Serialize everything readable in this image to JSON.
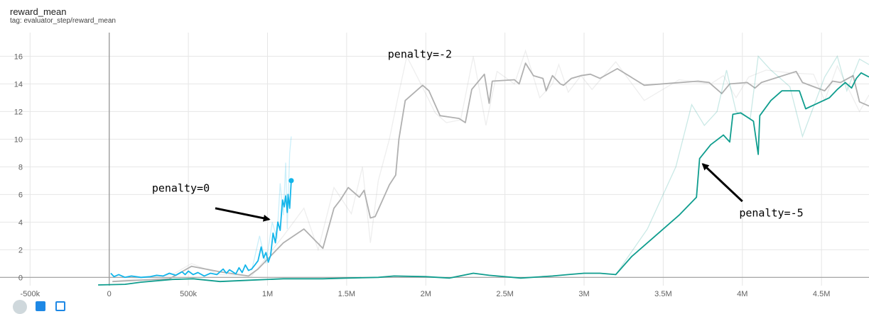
{
  "header": {
    "title": "reward_mean",
    "tag": "tag: evaluator_step/reward_mean"
  },
  "colors": {
    "penalty0": "#12b5ea",
    "penalty2": "#b0b0b0",
    "penalty5": "#0f9d8e",
    "grid": "#e6e6e6",
    "axis": "#9e9e9e"
  },
  "chart_data": {
    "type": "line",
    "title": "reward_mean",
    "subtitle": "tag: evaluator_step/reward_mean",
    "xlabel": "",
    "ylabel": "",
    "xlim": [
      -690000,
      4800000
    ],
    "ylim": [
      -0.6,
      17.2
    ],
    "grid": true,
    "x_ticks": [
      {
        "value": -500000,
        "label": "-500k"
      },
      {
        "value": 0,
        "label": "0"
      },
      {
        "value": 500000,
        "label": "500k"
      },
      {
        "value": 1000000,
        "label": "1M"
      },
      {
        "value": 1500000,
        "label": "1.5M"
      },
      {
        "value": 2000000,
        "label": "2M"
      },
      {
        "value": 2500000,
        "label": "2.5M"
      },
      {
        "value": 3000000,
        "label": "3M"
      },
      {
        "value": 3500000,
        "label": "3.5M"
      },
      {
        "value": 4000000,
        "label": "4M"
      },
      {
        "value": 4500000,
        "label": "4.5M"
      }
    ],
    "y_ticks": [
      {
        "value": 0,
        "label": "0"
      },
      {
        "value": 2,
        "label": "2"
      },
      {
        "value": 4,
        "label": "4"
      },
      {
        "value": 6,
        "label": "6"
      },
      {
        "value": 8,
        "label": "8"
      },
      {
        "value": 10,
        "label": "10"
      },
      {
        "value": 12,
        "label": "12"
      },
      {
        "value": 14,
        "label": "14"
      },
      {
        "value": 16,
        "label": "16"
      }
    ],
    "series": [
      {
        "key": "p2",
        "color": "#b0b0b0",
        "smoothed": [
          [
            20000,
            -0.3
          ],
          [
            200000,
            -0.2
          ],
          [
            380000,
            -0.1
          ],
          [
            520000,
            0.8
          ],
          [
            700000,
            0.4
          ],
          [
            880000,
            0.1
          ],
          [
            940000,
            0.6
          ],
          [
            1100000,
            2.5
          ],
          [
            1230000,
            3.5
          ],
          [
            1350000,
            2.1
          ],
          [
            1420000,
            5.0
          ],
          [
            1460000,
            5.6
          ],
          [
            1510000,
            6.5
          ],
          [
            1580000,
            5.8
          ],
          [
            1610000,
            6.3
          ],
          [
            1650000,
            4.3
          ],
          [
            1680000,
            4.4
          ],
          [
            1770000,
            6.7
          ],
          [
            1810000,
            7.4
          ],
          [
            1830000,
            10.0
          ],
          [
            1870000,
            12.8
          ],
          [
            1980000,
            13.9
          ],
          [
            2020000,
            13.5
          ],
          [
            2090000,
            11.7
          ],
          [
            2210000,
            11.5
          ],
          [
            2250000,
            11.2
          ],
          [
            2290000,
            13.6
          ],
          [
            2370000,
            14.7
          ],
          [
            2400000,
            12.6
          ],
          [
            2420000,
            14.2
          ],
          [
            2560000,
            14.3
          ],
          [
            2590000,
            14.0
          ],
          [
            2630000,
            15.5
          ],
          [
            2680000,
            14.6
          ],
          [
            2740000,
            14.4
          ],
          [
            2760000,
            13.5
          ],
          [
            2800000,
            14.6
          ],
          [
            2850000,
            14.0
          ],
          [
            2870000,
            13.9
          ],
          [
            2920000,
            14.4
          ],
          [
            2980000,
            14.6
          ],
          [
            3040000,
            14.7
          ],
          [
            3100000,
            14.4
          ],
          [
            3210000,
            15.1
          ],
          [
            3380000,
            13.9
          ],
          [
            3720000,
            14.2
          ],
          [
            3790000,
            14.1
          ],
          [
            3820000,
            13.8
          ],
          [
            3870000,
            13.3
          ],
          [
            3920000,
            14.0
          ],
          [
            4030000,
            14.1
          ],
          [
            4080000,
            13.7
          ],
          [
            4120000,
            14.1
          ],
          [
            4340000,
            14.9
          ],
          [
            4380000,
            14.1
          ],
          [
            4520000,
            13.5
          ],
          [
            4570000,
            14.2
          ],
          [
            4620000,
            14.1
          ],
          [
            4700000,
            14.6
          ],
          [
            4740000,
            12.7
          ],
          [
            4800000,
            12.4
          ]
        ],
        "raw": [
          [
            20000,
            -0.3
          ],
          [
            400000,
            0.2
          ],
          [
            520000,
            1.0
          ],
          [
            700000,
            0.2
          ],
          [
            900000,
            0.1
          ],
          [
            1100000,
            3.0
          ],
          [
            1230000,
            5.0
          ],
          [
            1320000,
            2.0
          ],
          [
            1420000,
            6.5
          ],
          [
            1530000,
            4.6
          ],
          [
            1600000,
            8.0
          ],
          [
            1650000,
            2.5
          ],
          [
            1700000,
            7.0
          ],
          [
            1770000,
            10.0
          ],
          [
            1820000,
            12.8
          ],
          [
            1880000,
            16.0
          ],
          [
            1960000,
            14.2
          ],
          [
            2060000,
            11.9
          ],
          [
            2130000,
            11.2
          ],
          [
            2220000,
            11.4
          ],
          [
            2300000,
            16.0
          ],
          [
            2380000,
            11.0
          ],
          [
            2450000,
            14.9
          ],
          [
            2560000,
            14.0
          ],
          [
            2630000,
            16.4
          ],
          [
            2720000,
            13.0
          ],
          [
            2800000,
            14.0
          ],
          [
            2840000,
            15.4
          ],
          [
            2900000,
            13.4
          ],
          [
            2980000,
            14.6
          ],
          [
            3050000,
            13.6
          ],
          [
            3200000,
            15.6
          ],
          [
            3380000,
            12.8
          ],
          [
            3600000,
            14.3
          ],
          [
            3800000,
            14.0
          ],
          [
            3880000,
            14.6
          ],
          [
            3960000,
            13.0
          ],
          [
            4040000,
            14.5
          ],
          [
            4150000,
            15.0
          ],
          [
            4300000,
            14.8
          ],
          [
            4450000,
            14.7
          ],
          [
            4520000,
            12.8
          ],
          [
            4600000,
            15.3
          ],
          [
            4740000,
            12.0
          ],
          [
            4800000,
            13.2
          ]
        ]
      },
      {
        "key": "p5",
        "color": "#0f9d8e",
        "smoothed": [
          [
            -70000,
            -0.55
          ],
          [
            100000,
            -0.5
          ],
          [
            200000,
            -0.35
          ],
          [
            400000,
            -0.15
          ],
          [
            530000,
            -0.1
          ],
          [
            700000,
            -0.3
          ],
          [
            900000,
            -0.2
          ],
          [
            1100000,
            -0.1
          ],
          [
            1350000,
            -0.1
          ],
          [
            1500000,
            -0.05
          ],
          [
            1700000,
            0.0
          ],
          [
            1800000,
            0.1
          ],
          [
            2000000,
            0.05
          ],
          [
            2150000,
            -0.05
          ],
          [
            2300000,
            0.3
          ],
          [
            2400000,
            0.15
          ],
          [
            2600000,
            -0.05
          ],
          [
            2800000,
            0.1
          ],
          [
            2900000,
            0.2
          ],
          [
            3000000,
            0.3
          ],
          [
            3100000,
            0.3
          ],
          [
            3200000,
            0.2
          ],
          [
            3300000,
            1.5
          ],
          [
            3450000,
            3.0
          ],
          [
            3600000,
            4.5
          ],
          [
            3710000,
            5.8
          ],
          [
            3730000,
            8.6
          ],
          [
            3800000,
            9.6
          ],
          [
            3880000,
            10.3
          ],
          [
            3920000,
            9.8
          ],
          [
            3940000,
            11.8
          ],
          [
            3990000,
            11.9
          ],
          [
            4070000,
            11.3
          ],
          [
            4100000,
            8.9
          ],
          [
            4110000,
            11.7
          ],
          [
            4180000,
            12.8
          ],
          [
            4250000,
            13.5
          ],
          [
            4330000,
            13.5
          ],
          [
            4360000,
            13.5
          ],
          [
            4400000,
            12.2
          ],
          [
            4550000,
            13.0
          ],
          [
            4600000,
            13.6
          ],
          [
            4650000,
            14.1
          ],
          [
            4690000,
            13.7
          ],
          [
            4720000,
            14.4
          ],
          [
            4750000,
            14.8
          ],
          [
            4800000,
            14.5
          ]
        ],
        "raw": [
          [
            3200000,
            0.2
          ],
          [
            3400000,
            3.5
          ],
          [
            3580000,
            8.0
          ],
          [
            3680000,
            12.5
          ],
          [
            3760000,
            11.0
          ],
          [
            3840000,
            12.0
          ],
          [
            3900000,
            15.0
          ],
          [
            3960000,
            12.0
          ],
          [
            4050000,
            11.5
          ],
          [
            4100000,
            16.0
          ],
          [
            4180000,
            15.0
          ],
          [
            4300000,
            13.8
          ],
          [
            4380000,
            10.2
          ],
          [
            4520000,
            14.5
          ],
          [
            4600000,
            16.0
          ],
          [
            4660000,
            13.5
          ],
          [
            4740000,
            15.8
          ],
          [
            4800000,
            15.4
          ]
        ]
      },
      {
        "key": "p0",
        "color": "#12b5ea",
        "smoothed": [
          [
            10000,
            0.3
          ],
          [
            30000,
            0.05
          ],
          [
            60000,
            0.2
          ],
          [
            100000,
            0.0
          ],
          [
            140000,
            0.1
          ],
          [
            200000,
            0.0
          ],
          [
            260000,
            0.05
          ],
          [
            300000,
            0.15
          ],
          [
            340000,
            0.1
          ],
          [
            380000,
            0.3
          ],
          [
            420000,
            0.15
          ],
          [
            460000,
            0.4
          ],
          [
            480000,
            0.2
          ],
          [
            500000,
            0.45
          ],
          [
            530000,
            0.2
          ],
          [
            560000,
            0.35
          ],
          [
            600000,
            0.1
          ],
          [
            640000,
            0.3
          ],
          [
            680000,
            0.2
          ],
          [
            720000,
            0.6
          ],
          [
            740000,
            0.3
          ],
          [
            760000,
            0.55
          ],
          [
            800000,
            0.25
          ],
          [
            820000,
            0.7
          ],
          [
            840000,
            0.35
          ],
          [
            860000,
            0.9
          ],
          [
            880000,
            0.5
          ],
          [
            900000,
            0.6
          ],
          [
            920000,
            0.9
          ],
          [
            940000,
            1.2
          ],
          [
            960000,
            2.2
          ],
          [
            975000,
            1.4
          ],
          [
            990000,
            1.8
          ],
          [
            1005000,
            1.1
          ],
          [
            1020000,
            1.6
          ],
          [
            1035000,
            3.2
          ],
          [
            1050000,
            2.5
          ],
          [
            1065000,
            4.0
          ],
          [
            1080000,
            3.4
          ],
          [
            1095000,
            5.6
          ],
          [
            1105000,
            5.1
          ],
          [
            1115000,
            5.9
          ],
          [
            1125000,
            4.7
          ],
          [
            1130000,
            6.0
          ],
          [
            1140000,
            5.0
          ],
          [
            1150000,
            7.0
          ]
        ],
        "raw": [
          [
            900000,
            0.5
          ],
          [
            950000,
            3.0
          ],
          [
            990000,
            1.0
          ],
          [
            1030000,
            4.0
          ],
          [
            1060000,
            2.8
          ],
          [
            1080000,
            6.8
          ],
          [
            1100000,
            4.5
          ],
          [
            1115000,
            8.3
          ],
          [
            1125000,
            3.5
          ],
          [
            1140000,
            9.0
          ],
          [
            1150000,
            10.2
          ]
        ],
        "end_marker": [
          1150000,
          7.0
        ]
      }
    ],
    "annotations": [
      {
        "text": "penalty=0",
        "label_at": [
          270000,
          6.2
        ],
        "arrow_from": [
          670000,
          5.0
        ],
        "arrow_to": [
          1010000,
          4.2
        ]
      },
      {
        "text": "penalty=-2",
        "label_at": [
          1760000,
          15.9
        ],
        "arrow_from": null,
        "arrow_to": null
      },
      {
        "text": "penalty=-5",
        "label_at": [
          3980000,
          4.4
        ],
        "arrow_from": [
          4000000,
          5.5
        ],
        "arrow_to": [
          3750000,
          8.2
        ]
      }
    ]
  }
}
